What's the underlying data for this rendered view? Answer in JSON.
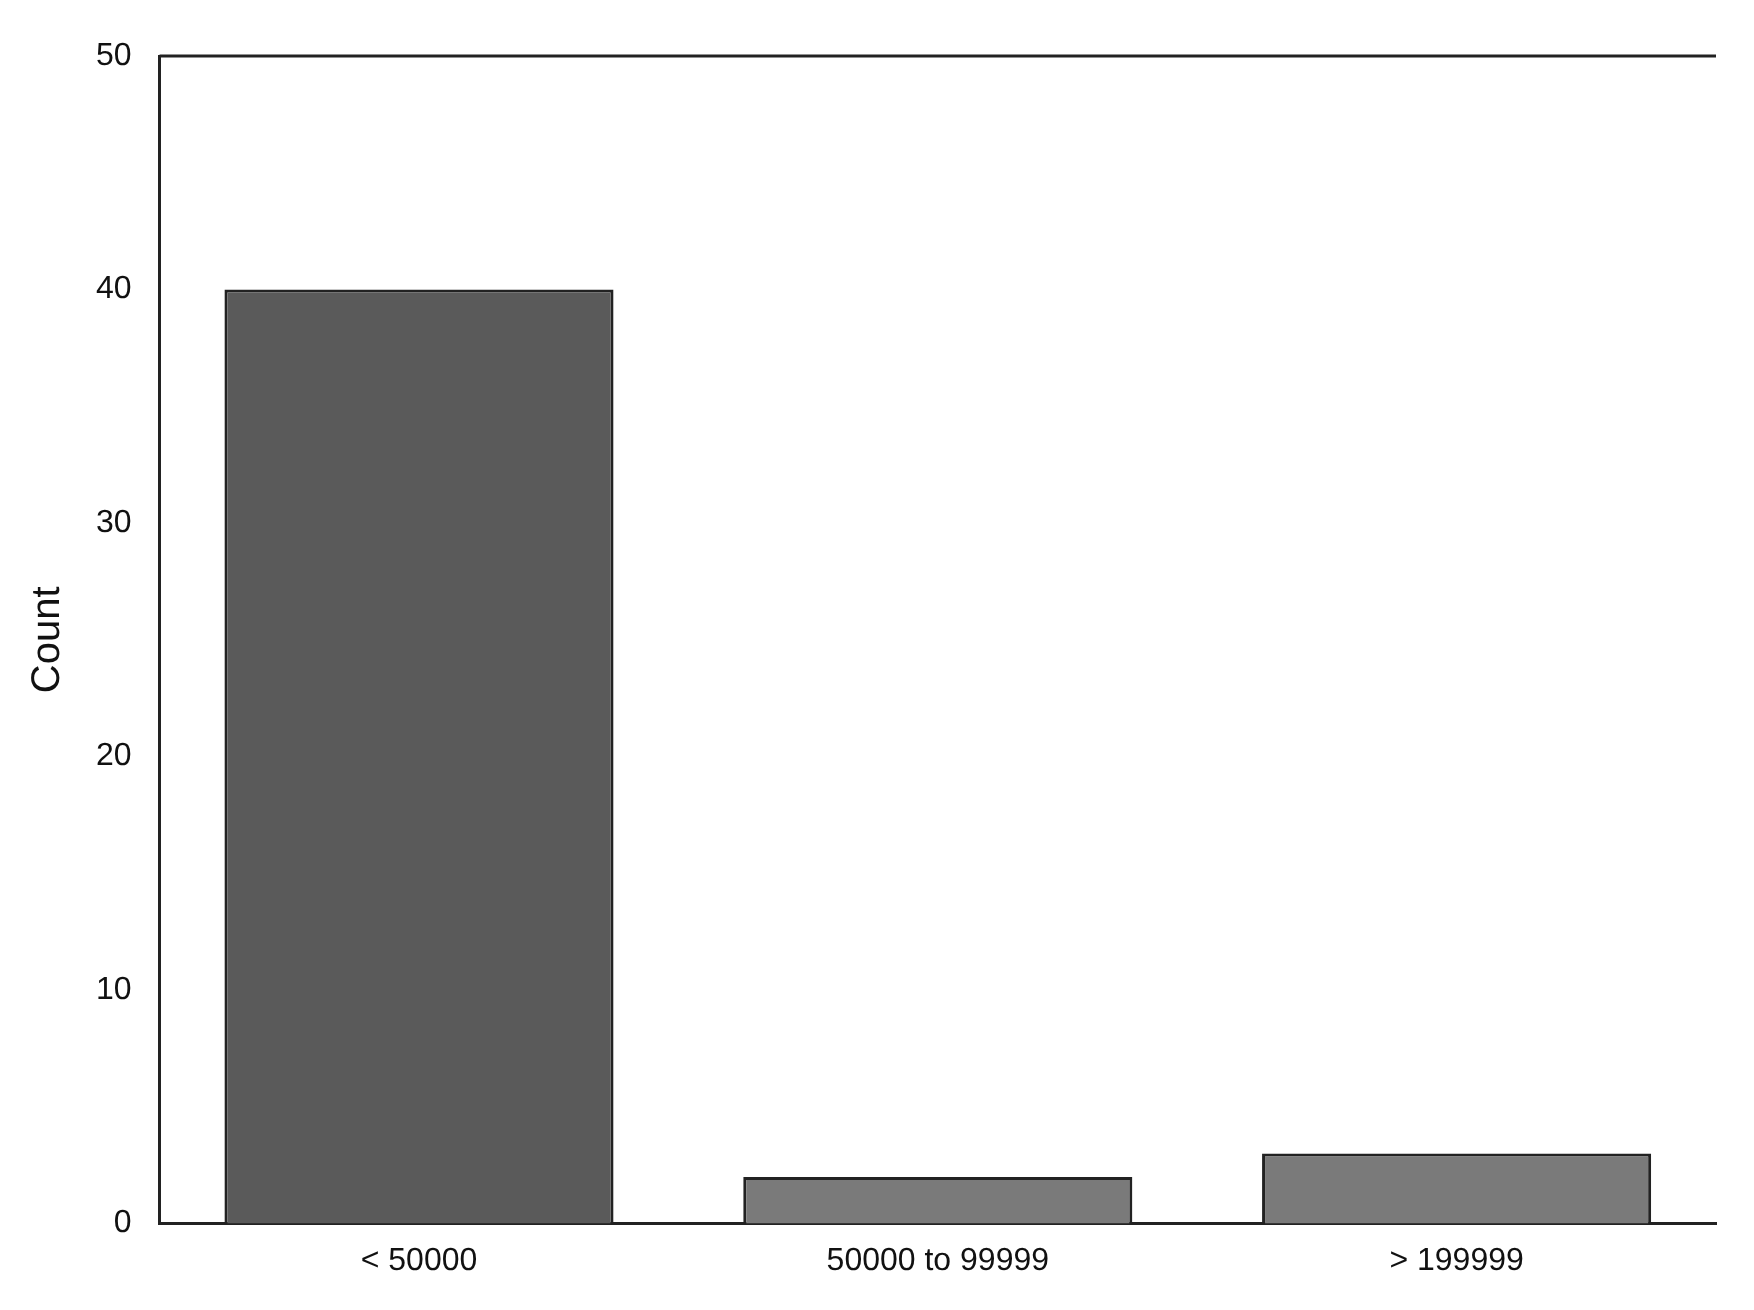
{
  "chart_data": {
    "type": "bar",
    "ylabel": "Count",
    "categories": [
      "< 50000",
      "50000 to 99999",
      "> 199999"
    ],
    "values": [
      40,
      2,
      3
    ],
    "colors": [
      "#5a5a5a",
      "#7a7a7a",
      "#7a7a7a"
    ],
    "ylim": [
      0,
      50
    ],
    "yticks": [
      0,
      10,
      20,
      30,
      40,
      50
    ],
    "grid": false,
    "legend": false
  }
}
